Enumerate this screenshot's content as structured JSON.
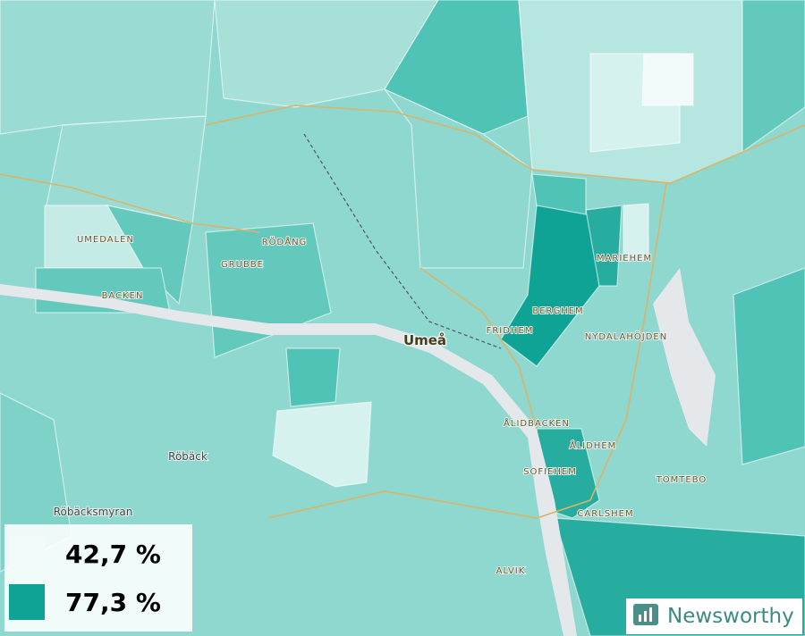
{
  "map": {
    "places": [
      "Umeå",
      "UMEDALEN",
      "BACKEN",
      "RÖDÅNG",
      "GRUBBE",
      "MARIEHEM",
      "BERGHEM",
      "FRIDHEM",
      "NYDALAHÖJDEN",
      "ÅLIDBACKEN",
      "ÅLIDHEM",
      "SOFIEHEM",
      "TOMTEBO",
      "CARLSHEM",
      "ALVIK",
      "Röbäck",
      "Röbäcksmyran"
    ],
    "legend": [
      {
        "label": "42,7 %",
        "color": "#f2fbfa"
      },
      {
        "label": "77,3 %",
        "color": "#0fa396"
      }
    ],
    "brand": "Newsworthy"
  }
}
